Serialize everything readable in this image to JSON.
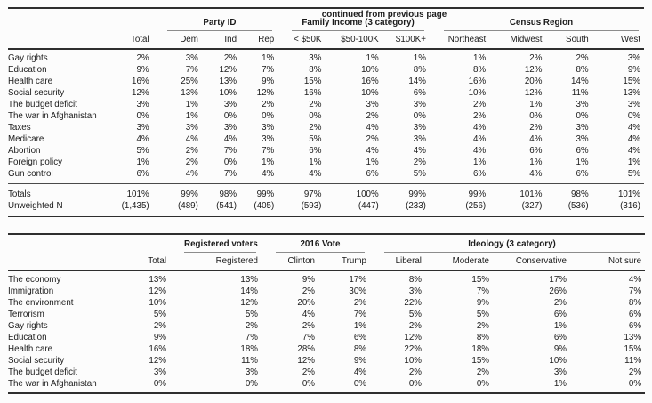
{
  "page": {
    "continued_note": "continued from previous page"
  },
  "colors": {
    "background": "#fcfcfc",
    "text": "#1b1b1b",
    "heavy_rule": "#2e2e2e",
    "light_rule": "#4a4a4a",
    "group_underline": "#8c8c8c"
  },
  "table1": {
    "groups": [
      {
        "label": "",
        "span": 2
      },
      {
        "label": "Party ID",
        "span": 3
      },
      {
        "label": "Family Income (3 category)",
        "span": 3
      },
      {
        "label": "Census Region",
        "span": 4
      }
    ],
    "columns": [
      "Total",
      "Dem",
      "Ind",
      "Rep",
      "< $50K",
      "$50-100K",
      "$100K+",
      "Northeast",
      "Midwest",
      "South",
      "West"
    ],
    "rows": [
      {
        "label": "Gay rights",
        "values": [
          "2%",
          "3%",
          "2%",
          "1%",
          "3%",
          "1%",
          "1%",
          "1%",
          "2%",
          "2%",
          "3%"
        ]
      },
      {
        "label": "Education",
        "values": [
          "9%",
          "7%",
          "12%",
          "7%",
          "8%",
          "10%",
          "8%",
          "8%",
          "12%",
          "8%",
          "9%"
        ]
      },
      {
        "label": "Health care",
        "values": [
          "16%",
          "25%",
          "13%",
          "9%",
          "15%",
          "16%",
          "14%",
          "16%",
          "20%",
          "14%",
          "15%"
        ]
      },
      {
        "label": "Social security",
        "values": [
          "12%",
          "13%",
          "10%",
          "12%",
          "16%",
          "10%",
          "6%",
          "10%",
          "12%",
          "11%",
          "13%"
        ]
      },
      {
        "label": "The budget deficit",
        "values": [
          "3%",
          "1%",
          "3%",
          "2%",
          "2%",
          "3%",
          "3%",
          "2%",
          "1%",
          "3%",
          "3%"
        ]
      },
      {
        "label": "The war in Afghanistan",
        "values": [
          "0%",
          "1%",
          "0%",
          "0%",
          "0%",
          "2%",
          "0%",
          "2%",
          "0%",
          "0%",
          "0%"
        ]
      },
      {
        "label": "Taxes",
        "values": [
          "3%",
          "3%",
          "3%",
          "3%",
          "2%",
          "4%",
          "3%",
          "4%",
          "2%",
          "3%",
          "4%"
        ]
      },
      {
        "label": "Medicare",
        "values": [
          "4%",
          "4%",
          "4%",
          "3%",
          "5%",
          "2%",
          "3%",
          "4%",
          "4%",
          "3%",
          "4%"
        ]
      },
      {
        "label": "Abortion",
        "values": [
          "5%",
          "2%",
          "7%",
          "7%",
          "6%",
          "4%",
          "4%",
          "4%",
          "6%",
          "6%",
          "4%"
        ]
      },
      {
        "label": "Foreign policy",
        "values": [
          "1%",
          "2%",
          "0%",
          "1%",
          "1%",
          "1%",
          "2%",
          "1%",
          "1%",
          "1%",
          "1%"
        ]
      },
      {
        "label": "Gun control",
        "values": [
          "6%",
          "4%",
          "7%",
          "4%",
          "4%",
          "6%",
          "5%",
          "6%",
          "4%",
          "6%",
          "5%"
        ]
      }
    ],
    "footer_rows": [
      {
        "label": "Totals",
        "values": [
          "101%",
          "99%",
          "98%",
          "99%",
          "97%",
          "100%",
          "99%",
          "99%",
          "101%",
          "98%",
          "101%"
        ]
      },
      {
        "label": "Unweighted N",
        "values": [
          "(1,435)",
          "(489)",
          "(541)",
          "(405)",
          "(593)",
          "(447)",
          "(233)",
          "(256)",
          "(327)",
          "(536)",
          "(316)"
        ]
      }
    ]
  },
  "table2": {
    "groups": [
      {
        "label": "",
        "span": 2
      },
      {
        "label": "Registered voters",
        "span": 1
      },
      {
        "label": "2016 Vote",
        "span": 2
      },
      {
        "label": "Ideology (3 category)",
        "span": 4
      }
    ],
    "columns": [
      "Total",
      "Registered",
      "Clinton",
      "Trump",
      "Liberal",
      "Moderate",
      "Conservative",
      "Not sure"
    ],
    "rows": [
      {
        "label": "The economy",
        "values": [
          "13%",
          "13%",
          "9%",
          "17%",
          "8%",
          "15%",
          "17%",
          "4%"
        ]
      },
      {
        "label": "Immigration",
        "values": [
          "12%",
          "14%",
          "2%",
          "30%",
          "3%",
          "7%",
          "26%",
          "7%"
        ]
      },
      {
        "label": "The environment",
        "values": [
          "10%",
          "12%",
          "20%",
          "2%",
          "22%",
          "9%",
          "2%",
          "8%"
        ]
      },
      {
        "label": "Terrorism",
        "values": [
          "5%",
          "5%",
          "4%",
          "7%",
          "5%",
          "5%",
          "6%",
          "6%"
        ]
      },
      {
        "label": "Gay rights",
        "values": [
          "2%",
          "2%",
          "2%",
          "1%",
          "2%",
          "2%",
          "1%",
          "6%"
        ]
      },
      {
        "label": "Education",
        "values": [
          "9%",
          "7%",
          "7%",
          "6%",
          "12%",
          "8%",
          "6%",
          "13%"
        ]
      },
      {
        "label": "Health care",
        "values": [
          "16%",
          "18%",
          "28%",
          "8%",
          "22%",
          "18%",
          "9%",
          "15%"
        ]
      },
      {
        "label": "Social security",
        "values": [
          "12%",
          "11%",
          "12%",
          "9%",
          "10%",
          "15%",
          "10%",
          "11%"
        ]
      },
      {
        "label": "The budget deficit",
        "values": [
          "3%",
          "3%",
          "2%",
          "4%",
          "2%",
          "2%",
          "3%",
          "2%"
        ]
      },
      {
        "label": "The war in Afghanistan",
        "values": [
          "0%",
          "0%",
          "0%",
          "0%",
          "0%",
          "0%",
          "1%",
          "0%"
        ]
      }
    ]
  }
}
